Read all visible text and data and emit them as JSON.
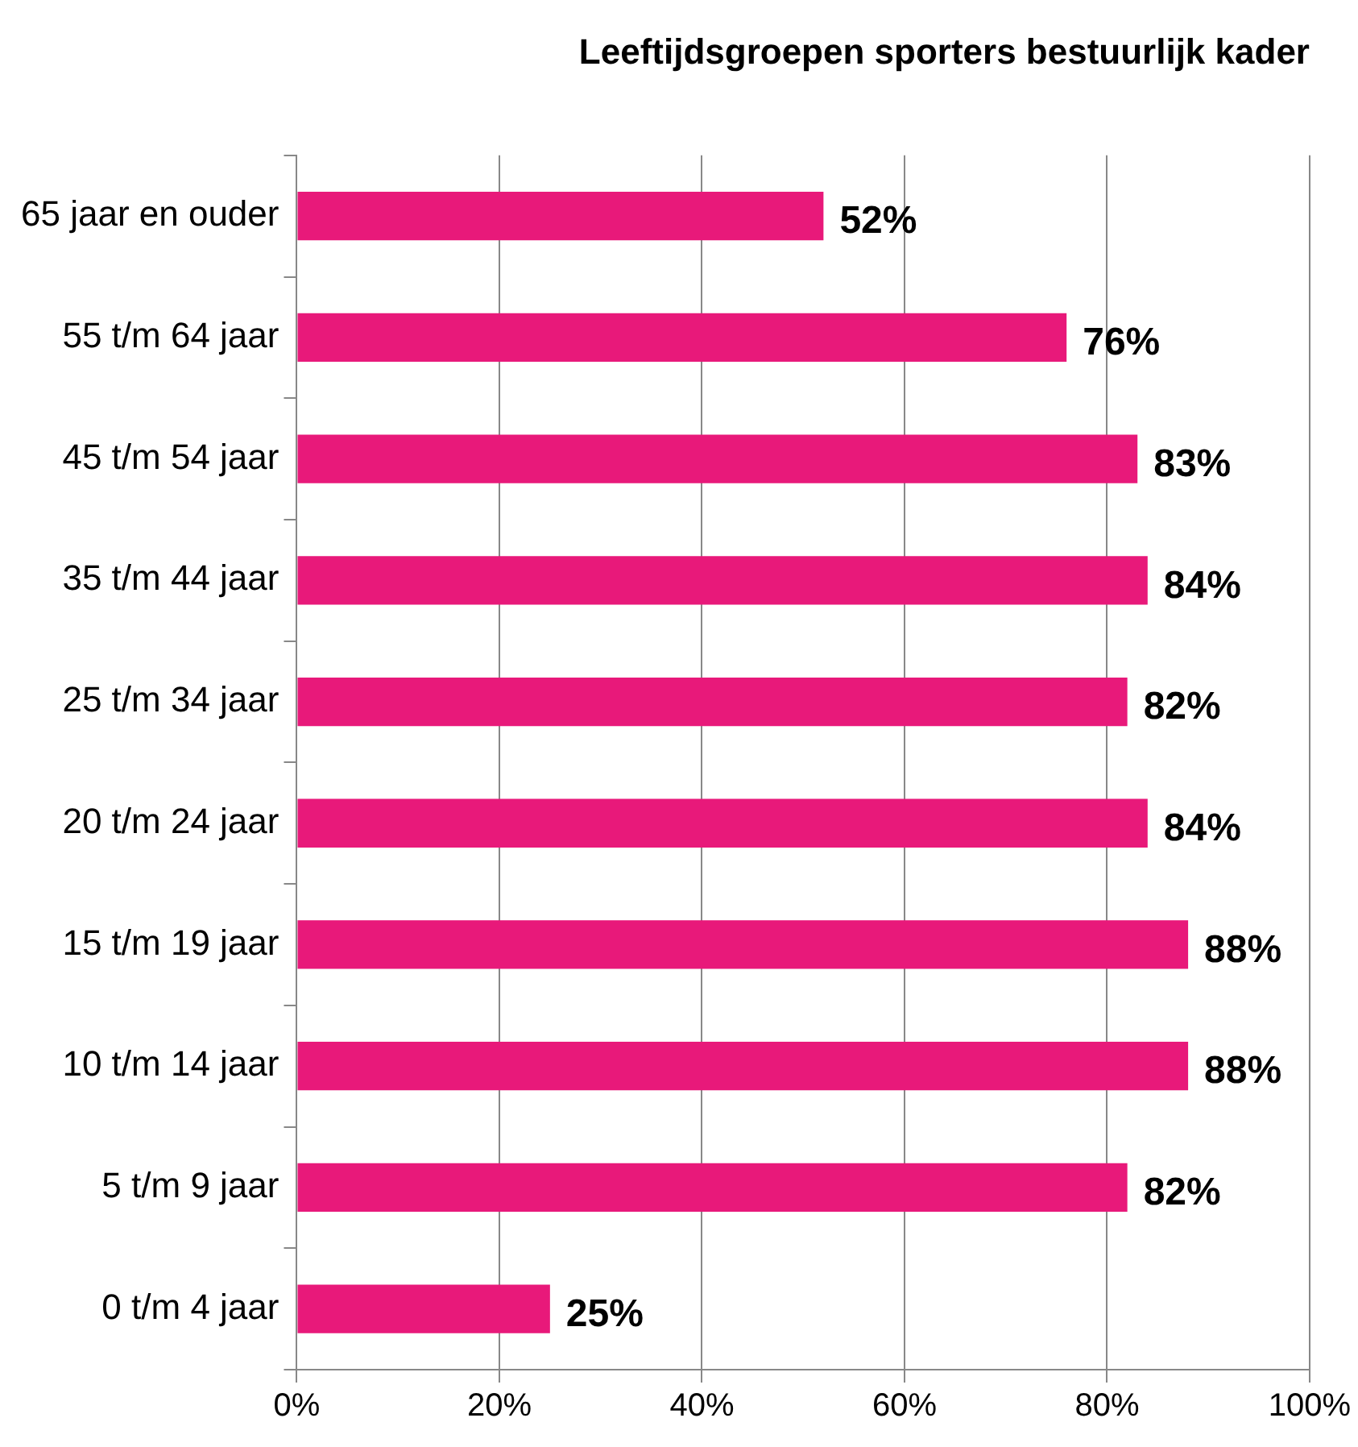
{
  "chart_data": {
    "type": "bar",
    "orientation": "horizontal",
    "title": "Leeftijdsgroepen sporters bestuurlijk kader",
    "categories": [
      "65 jaar en ouder",
      "55 t/m 64 jaar",
      "45 t/m 54 jaar",
      "35 t/m 44 jaar",
      "25 t/m 34 jaar",
      "20 t/m 24 jaar",
      "15 t/m 19 jaar",
      "10 t/m 14 jaar",
      "5 t/m 9 jaar",
      "0 t/m 4 jaar"
    ],
    "values": [
      52,
      76,
      83,
      84,
      82,
      84,
      88,
      88,
      82,
      25
    ],
    "value_labels": [
      "52%",
      "76%",
      "83%",
      "84%",
      "82%",
      "84%",
      "88%",
      "88%",
      "82%",
      "25%"
    ],
    "color": "#e8197a",
    "xlim": [
      0,
      100
    ],
    "xticks": [
      {
        "value": 0,
        "label": "0%"
      },
      {
        "value": 20,
        "label": "20%"
      },
      {
        "value": 40,
        "label": "40%"
      },
      {
        "value": 60,
        "label": "60%"
      },
      {
        "value": 80,
        "label": "80%"
      },
      {
        "value": 100,
        "label": "100%"
      }
    ],
    "grid": "x",
    "legend": false
  }
}
